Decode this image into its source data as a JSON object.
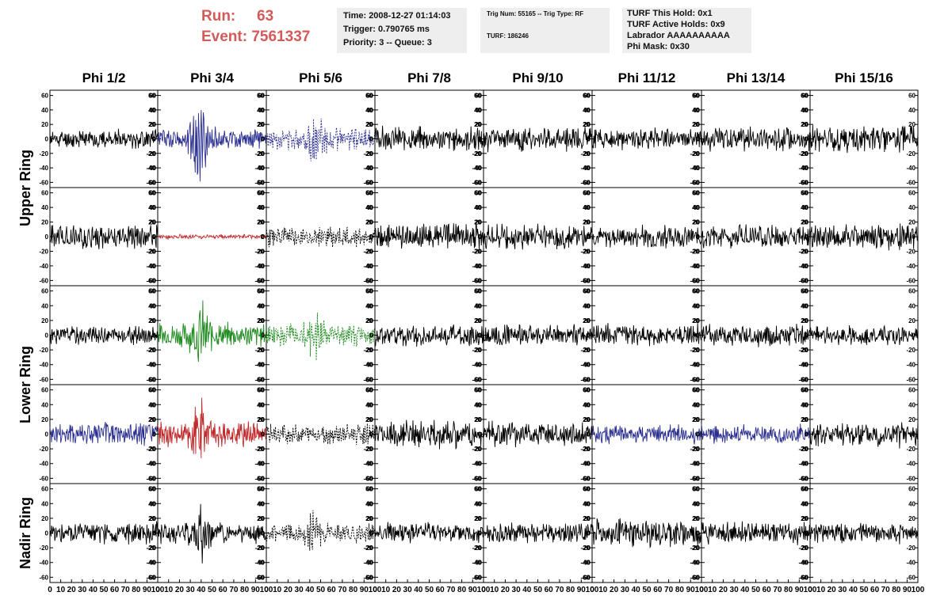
{
  "header": {
    "run_label": "Run:",
    "run_value": "63",
    "event_label": "Event:",
    "event_value": "7561337",
    "time_line": "Time: 2008-12-27 01:14:03",
    "trigger_line": "Trigger: 0.790765 ms",
    "priority_line": "Priority: 3 -- Queue: 3",
    "trig_line": "Trig Num: 55165 -- Trig Type: RF",
    "turf_line": "TURF: 186246",
    "turf_hold_line": "TURF This Hold: 0x1",
    "turf_active_line": "TURF Active Holds: 0x9",
    "labrador_line": "Labrador AAAAAAAAAA",
    "phi_mask_line": "Phi Mask: 0x30"
  },
  "colors": {
    "run_text": "#d45a5a",
    "black": "#000000",
    "blue": "#2b2f8f",
    "red": "#c0282a",
    "green": "#1f8a1f"
  },
  "chart_data": {
    "type": "line",
    "columns": [
      "Phi 1/2",
      "Phi 3/4",
      "Phi 5/6",
      "Phi 7/8",
      "Phi 9/10",
      "Phi 11/12",
      "Phi 13/14",
      "Phi 15/16"
    ],
    "ring_labels": [
      {
        "label": "Upper Ring",
        "rows": [
          0,
          1
        ]
      },
      {
        "label": "Lower Ring",
        "rows": [
          2,
          3
        ]
      },
      {
        "label": "Nadir Ring",
        "rows": [
          4
        ]
      }
    ],
    "xlim": [
      0,
      100
    ],
    "ylim": [
      -65,
      65
    ],
    "x_ticks": [
      0,
      10,
      20,
      30,
      40,
      50,
      60,
      70,
      80,
      90,
      100
    ],
    "y_ticks": [
      -60,
      -40,
      -20,
      0,
      20,
      40,
      60
    ],
    "grid": false,
    "waveform_styles": {
      "black": {
        "color": "#000000",
        "dashed": false
      },
      "blue": {
        "color": "#2b2f8f",
        "dashed": false
      },
      "red": {
        "color": "#c0282a",
        "dashed": false
      },
      "green": {
        "color": "#1f8a1f",
        "dashed": false
      },
      "blue-dash": {
        "color": "#2b2f8f",
        "dashed": true
      },
      "black-dash": {
        "color": "#000000",
        "dashed": true
      },
      "green-dash": {
        "color": "#1f8a1f",
        "dashed": true
      }
    },
    "panels": [
      [
        {
          "style": "black",
          "amp": 12,
          "seed": 11
        },
        {
          "style": "blue",
          "amp": 14,
          "seed": 12,
          "burst_center": 38,
          "burst_amp": 46
        },
        {
          "style": "blue-dash",
          "amp": 14,
          "seed": 13,
          "burst_center": 45,
          "burst_amp": 22
        },
        {
          "style": "black",
          "amp": 16,
          "seed": 14
        },
        {
          "style": "black",
          "amp": 16,
          "seed": 15
        },
        {
          "style": "black",
          "amp": 14,
          "seed": 16
        },
        {
          "style": "black",
          "amp": 16,
          "seed": 17
        },
        {
          "style": "black",
          "amp": 18,
          "seed": 18
        }
      ],
      [
        {
          "style": "black",
          "amp": 16,
          "seed": 21
        },
        {
          "style": "red",
          "amp": 3,
          "seed": 22
        },
        {
          "style": "black-dash",
          "amp": 14,
          "seed": 23
        },
        {
          "style": "black",
          "amp": 17,
          "seed": 24
        },
        {
          "style": "black",
          "amp": 16,
          "seed": 25
        },
        {
          "style": "black",
          "amp": 14,
          "seed": 26
        },
        {
          "style": "black",
          "amp": 15,
          "seed": 27
        },
        {
          "style": "black",
          "amp": 17,
          "seed": 28
        }
      ],
      [
        {
          "style": "black",
          "amp": 12,
          "seed": 31
        },
        {
          "style": "green",
          "amp": 16,
          "seed": 32,
          "burst_center": 40,
          "burst_amp": 30
        },
        {
          "style": "green-dash",
          "amp": 14,
          "seed": 33,
          "burst_center": 45,
          "burst_amp": 24
        },
        {
          "style": "black",
          "amp": 14,
          "seed": 34
        },
        {
          "style": "black",
          "amp": 14,
          "seed": 35
        },
        {
          "style": "black",
          "amp": 14,
          "seed": 36
        },
        {
          "style": "black",
          "amp": 15,
          "seed": 37
        },
        {
          "style": "black",
          "amp": 12,
          "seed": 38
        }
      ],
      [
        {
          "style": "blue",
          "amp": 16,
          "seed": 41
        },
        {
          "style": "red",
          "amp": 16,
          "seed": 42,
          "burst_center": 38,
          "burst_amp": 40
        },
        {
          "style": "black-dash",
          "amp": 13,
          "seed": 43
        },
        {
          "style": "black",
          "amp": 18,
          "seed": 44
        },
        {
          "style": "black",
          "amp": 16,
          "seed": 45
        },
        {
          "style": "blue",
          "amp": 12,
          "seed": 46
        },
        {
          "style": "blue",
          "amp": 12,
          "seed": 47
        },
        {
          "style": "black",
          "amp": 17,
          "seed": 48
        }
      ],
      [
        {
          "style": "black",
          "amp": 14,
          "seed": 51
        },
        {
          "style": "black",
          "amp": 14,
          "seed": 52,
          "burst_center": 40,
          "burst_amp": 28
        },
        {
          "style": "black-dash",
          "amp": 12,
          "seed": 53,
          "burst_center": 43,
          "burst_amp": 18
        },
        {
          "style": "black",
          "amp": 14,
          "seed": 54
        },
        {
          "style": "black",
          "amp": 13,
          "seed": 55
        },
        {
          "style": "black",
          "amp": 18,
          "seed": 56
        },
        {
          "style": "black",
          "amp": 14,
          "seed": 57
        },
        {
          "style": "black",
          "amp": 13,
          "seed": 58
        }
      ]
    ]
  }
}
